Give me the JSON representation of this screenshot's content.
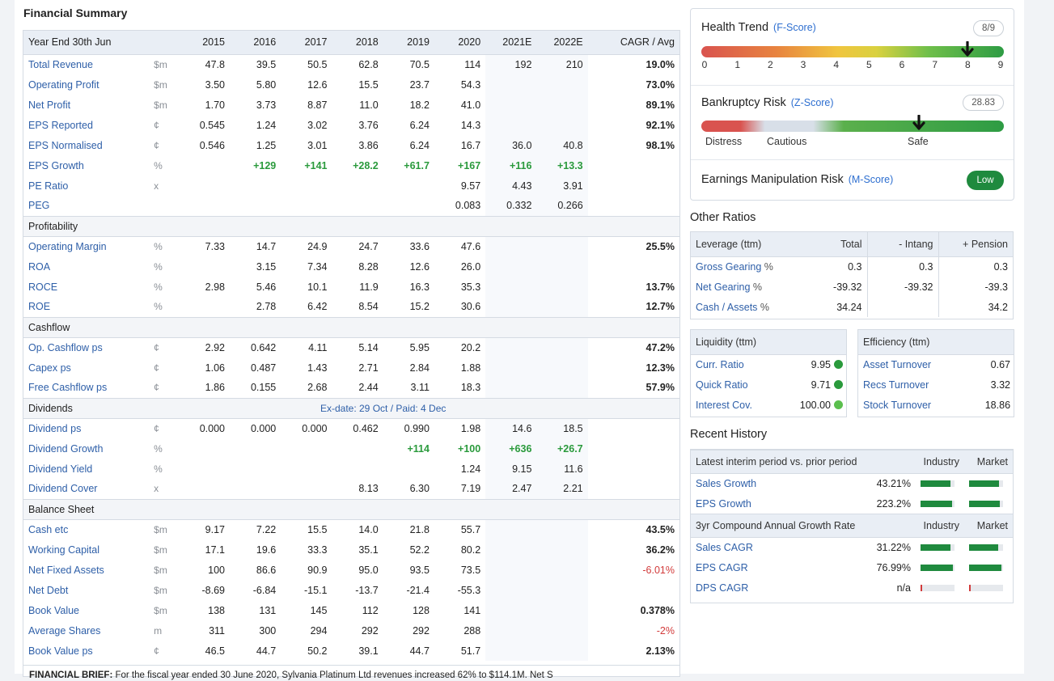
{
  "financial_summary": {
    "title": "Financial Summary",
    "header": {
      "label": "Year End 30th Jun",
      "years": [
        "2015",
        "2016",
        "2017",
        "2018",
        "2019",
        "2020",
        "2021E",
        "2022E"
      ],
      "cagr": "CAGR / Avg"
    },
    "sections": [
      {
        "name": "",
        "rows": [
          {
            "label": "Total Revenue",
            "unit": "$m",
            "values": [
              "47.8",
              "39.5",
              "50.5",
              "62.8",
              "70.5",
              "114",
              "192",
              "210"
            ],
            "cagr": "19.0%",
            "cagr_tone": ""
          },
          {
            "label": "Operating Profit",
            "unit": "$m",
            "values": [
              "3.50",
              "5.80",
              "12.6",
              "15.5",
              "23.7",
              "54.3",
              "",
              ""
            ],
            "cagr": "73.0%",
            "cagr_tone": ""
          },
          {
            "label": "Net Profit",
            "unit": "$m",
            "values": [
              "1.70",
              "3.73",
              "8.87",
              "11.0",
              "18.2",
              "41.0",
              "",
              ""
            ],
            "cagr": "89.1%",
            "cagr_tone": ""
          },
          {
            "label": "EPS Reported",
            "unit": "¢",
            "values": [
              "0.545",
              "1.24",
              "3.02",
              "3.76",
              "6.24",
              "14.3",
              "",
              ""
            ],
            "cagr": "92.1%",
            "cagr_tone": ""
          },
          {
            "label": "EPS Normalised",
            "unit": "¢",
            "values": [
              "0.546",
              "1.25",
              "3.01",
              "3.86",
              "6.24",
              "16.7",
              "36.0",
              "40.8"
            ],
            "cagr": "98.1%",
            "cagr_tone": ""
          },
          {
            "label": "EPS Growth",
            "unit": "%",
            "values": [
              "",
              "+129",
              "+141",
              "+28.2",
              "+61.7",
              "+167",
              "+116",
              "+13.3"
            ],
            "cagr": "",
            "tone": "pos"
          },
          {
            "label": "PE Ratio",
            "unit": "x",
            "values": [
              "",
              "",
              "",
              "",
              "",
              "9.57",
              "4.43",
              "3.91"
            ],
            "cagr": ""
          },
          {
            "label": "PEG",
            "unit": "",
            "values": [
              "",
              "",
              "",
              "",
              "",
              "0.083",
              "0.332",
              "0.266"
            ],
            "cagr": ""
          }
        ]
      },
      {
        "name": "Profitability",
        "rows": [
          {
            "label": "Operating Margin",
            "unit": "%",
            "values": [
              "7.33",
              "14.7",
              "24.9",
              "24.7",
              "33.6",
              "47.6",
              "",
              ""
            ],
            "cagr": "25.5%"
          },
          {
            "label": "ROA",
            "unit": "%",
            "values": [
              "",
              "3.15",
              "7.34",
              "8.28",
              "12.6",
              "26.0",
              "",
              ""
            ],
            "cagr": ""
          },
          {
            "label": "ROCE",
            "unit": "%",
            "values": [
              "2.98",
              "5.46",
              "10.1",
              "11.9",
              "16.3",
              "35.3",
              "",
              ""
            ],
            "cagr": "13.7%"
          },
          {
            "label": "ROE",
            "unit": "%",
            "values": [
              "",
              "2.78",
              "6.42",
              "8.54",
              "15.2",
              "30.6",
              "",
              ""
            ],
            "cagr": "12.7%"
          }
        ]
      },
      {
        "name": "Cashflow",
        "rows": [
          {
            "label": "Op. Cashflow ps",
            "unit": "¢",
            "values": [
              "2.92",
              "0.642",
              "4.11",
              "5.14",
              "5.95",
              "20.2",
              "",
              ""
            ],
            "cagr": "47.2%"
          },
          {
            "label": "Capex ps",
            "unit": "¢",
            "values": [
              "1.06",
              "0.487",
              "1.43",
              "2.71",
              "2.84",
              "1.88",
              "",
              ""
            ],
            "cagr": "12.3%"
          },
          {
            "label": "Free Cashflow ps",
            "unit": "¢",
            "values": [
              "1.86",
              "0.155",
              "2.68",
              "2.44",
              "3.11",
              "18.3",
              "",
              ""
            ],
            "cagr": "57.9%"
          }
        ]
      },
      {
        "name": "Dividends",
        "note": "Ex-date: 29 Oct / Paid: 4 Dec",
        "rows": [
          {
            "label": "Dividend ps",
            "unit": "¢",
            "values": [
              "0.000",
              "0.000",
              "0.000",
              "0.462",
              "0.990",
              "1.98",
              "14.6",
              "18.5"
            ],
            "cagr": ""
          },
          {
            "label": "Dividend Growth",
            "unit": "%",
            "values": [
              "",
              "",
              "",
              "",
              "+114",
              "+100",
              "+636",
              "+26.7"
            ],
            "cagr": "",
            "tone": "pos"
          },
          {
            "label": "Dividend Yield",
            "unit": "%",
            "values": [
              "",
              "",
              "",
              "",
              "",
              "1.24",
              "9.15",
              "11.6"
            ],
            "cagr": ""
          },
          {
            "label": "Dividend Cover",
            "unit": "x",
            "values": [
              "",
              "",
              "",
              "8.13",
              "6.30",
              "7.19",
              "2.47",
              "2.21"
            ],
            "cagr": ""
          }
        ]
      },
      {
        "name": "Balance Sheet",
        "rows": [
          {
            "label": "Cash etc",
            "unit": "$m",
            "values": [
              "9.17",
              "7.22",
              "15.5",
              "14.0",
              "21.8",
              "55.7",
              "",
              ""
            ],
            "cagr": "43.5%"
          },
          {
            "label": "Working Capital",
            "unit": "$m",
            "values": [
              "17.1",
              "19.6",
              "33.3",
              "35.1",
              "52.2",
              "80.2",
              "",
              ""
            ],
            "cagr": "36.2%"
          },
          {
            "label": "Net Fixed Assets",
            "unit": "$m",
            "values": [
              "100",
              "86.6",
              "90.9",
              "95.0",
              "93.5",
              "73.5",
              "",
              ""
            ],
            "cagr": "-6.01%",
            "cagr_tone": "neg"
          },
          {
            "label": "Net Debt",
            "unit": "$m",
            "values": [
              "-8.69",
              "-6.84",
              "-15.1",
              "-13.7",
              "-21.4",
              "-55.3",
              "",
              ""
            ],
            "cagr": ""
          },
          {
            "label": "Book Value",
            "unit": "$m",
            "values": [
              "138",
              "131",
              "145",
              "112",
              "128",
              "141",
              "",
              ""
            ],
            "cagr": "0.378%"
          },
          {
            "label": "Average Shares",
            "unit": "m",
            "values": [
              "311",
              "300",
              "294",
              "292",
              "292",
              "288",
              "",
              ""
            ],
            "cagr": "-2%",
            "cagr_tone": "neg"
          },
          {
            "label": "Book Value ps",
            "unit": "¢",
            "values": [
              "46.5",
              "44.7",
              "50.2",
              "39.1",
              "44.7",
              "51.7",
              "",
              ""
            ],
            "cagr": "2.13%"
          }
        ]
      }
    ],
    "brief_label": "FINANCIAL BRIEF:",
    "brief_text": "For the fiscal year ended 30 June 2020, Sylvania Platinum Ltd revenues increased 62% to $114.1M. Net S"
  },
  "health": {
    "health_trend": {
      "title": "Health Trend",
      "sub": "(F-Score)",
      "score": "8/9",
      "value": 8,
      "max": 9,
      "ticks": [
        "0",
        "1",
        "2",
        "3",
        "4",
        "5",
        "6",
        "7",
        "8",
        "9"
      ]
    },
    "bankruptcy": {
      "title": "Bankruptcy Risk",
      "sub": "(Z-Score)",
      "score": "28.83",
      "marker_fraction": 0.72,
      "labels": [
        "Distress",
        "Cautious",
        "Safe"
      ]
    },
    "manipulation": {
      "title": "Earnings Manipulation Risk",
      "sub": "(M-Score)",
      "badge": "Low"
    }
  },
  "other_ratios": {
    "title": "Other Ratios",
    "leverage": {
      "header": [
        "Leverage (ttm)",
        "Total",
        "- Intang",
        "+ Pension"
      ],
      "rows": [
        {
          "label": "Gross Gearing",
          "unit": "%",
          "values": [
            "0.3",
            "0.3",
            "0.3"
          ]
        },
        {
          "label": "Net Gearing",
          "unit": "%",
          "values": [
            "-39.32",
            "-39.32",
            "-39.3"
          ]
        },
        {
          "label": "Cash / Assets",
          "unit": "%",
          "values": [
            "34.24",
            "",
            "34.2"
          ]
        }
      ]
    },
    "liquidity": {
      "header": "Liquidity (ttm)",
      "rows": [
        {
          "label": "Curr. Ratio",
          "value": "9.95",
          "dot": "#2a9a3c"
        },
        {
          "label": "Quick Ratio",
          "value": "9.71",
          "dot": "#2a9a3c"
        },
        {
          "label": "Interest Cov.",
          "value": "100.00",
          "dot": "#5bbf4e"
        }
      ]
    },
    "efficiency": {
      "header": "Efficiency (ttm)",
      "rows": [
        {
          "label": "Asset Turnover",
          "value": "0.67"
        },
        {
          "label": "Recs Turnover",
          "value": "3.32"
        },
        {
          "label": "Stock Turnover",
          "value": "18.86"
        }
      ]
    }
  },
  "recent_history": {
    "title": "Recent History",
    "group1": {
      "header": "Latest interim period vs. prior period",
      "industry": "Industry",
      "market": "Market",
      "rows": [
        {
          "label": "Sales Growth",
          "value": "43.21%",
          "industry_fill": 0.88,
          "market_fill": 0.88,
          "industry_color": "#1f8a3e",
          "market_color": "#1f8a3e"
        },
        {
          "label": "EPS Growth",
          "value": "223.2%",
          "industry_fill": 0.92,
          "market_fill": 0.9,
          "industry_color": "#1f8a3e",
          "market_color": "#1f8a3e"
        }
      ]
    },
    "group2": {
      "header": "3yr Compound Annual Growth Rate",
      "industry": "Industry",
      "market": "Market",
      "rows": [
        {
          "label": "Sales CAGR",
          "value": "31.22%",
          "industry_fill": 0.88,
          "market_fill": 0.86,
          "industry_color": "#1f8a3e",
          "market_color": "#1f8a3e"
        },
        {
          "label": "EPS CAGR",
          "value": "76.99%",
          "industry_fill": 0.95,
          "market_fill": 0.95,
          "industry_color": "#1f8a3e",
          "market_color": "#1f8a3e"
        },
        {
          "label": "DPS CAGR",
          "value": "n/a",
          "industry_fill": 0.04,
          "market_fill": 0.04,
          "industry_color": "#d23a3a",
          "market_color": "#d23a3a"
        }
      ]
    }
  }
}
